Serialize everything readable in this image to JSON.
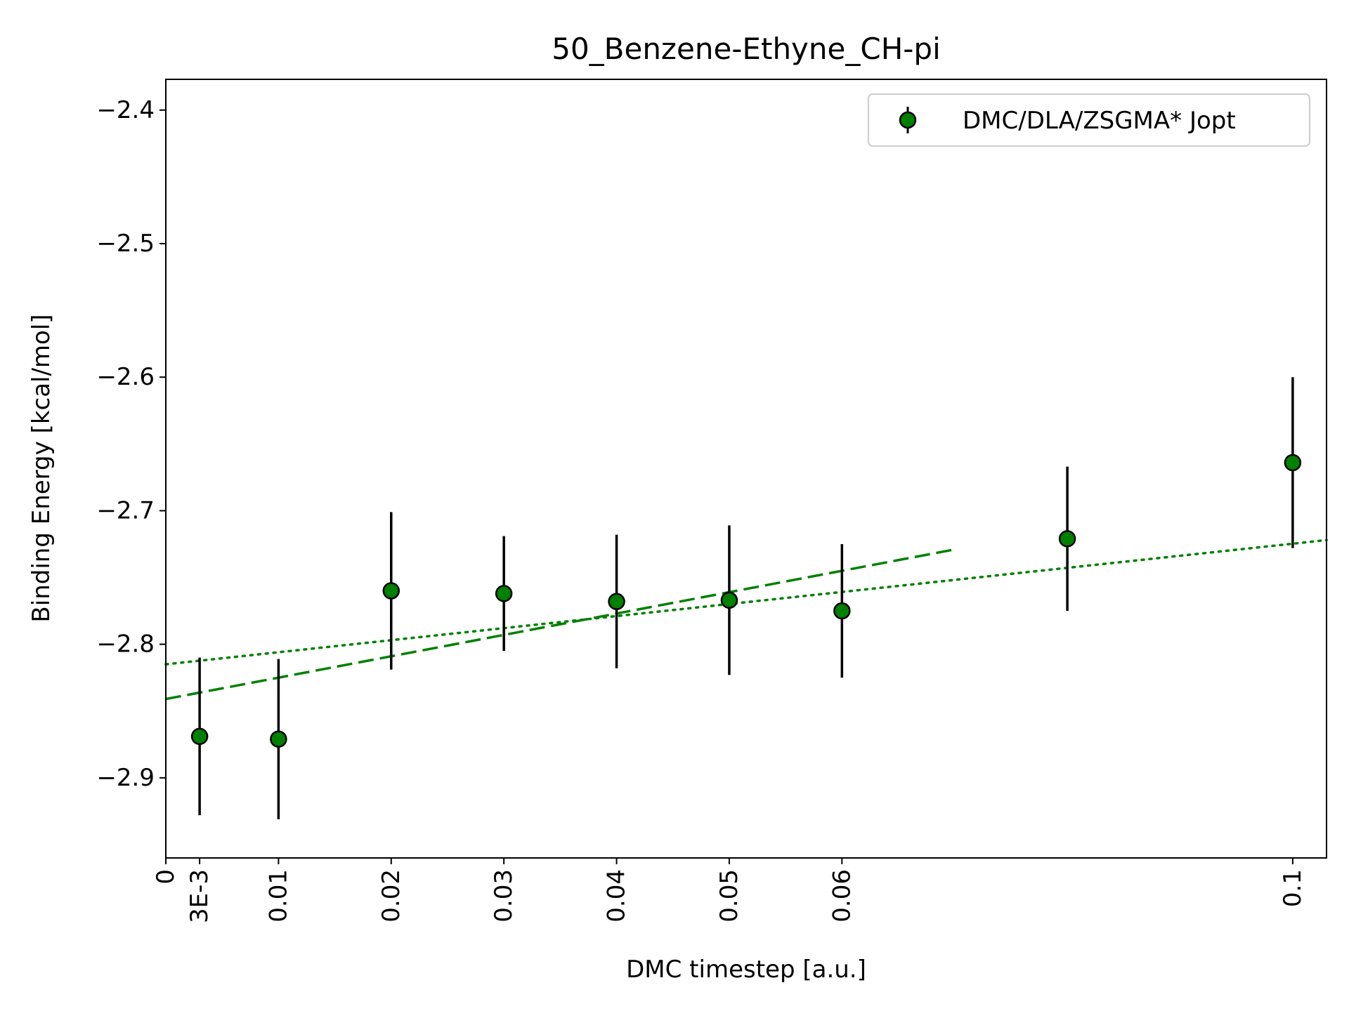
{
  "chart_data": {
    "type": "scatter",
    "title": "50_Benzene-Ethyne_CH-pi",
    "xlabel": "DMC timestep [a.u.]",
    "ylabel": "Binding Energy [kcal/mol]",
    "xlim": [
      0,
      0.103
    ],
    "ylim": [
      -2.96,
      -2.377
    ],
    "xticks": [
      {
        "value": 0,
        "label": "0"
      },
      {
        "value": 0.003,
        "label": "3E-3"
      },
      {
        "value": 0.01,
        "label": "0.01"
      },
      {
        "value": 0.02,
        "label": "0.02"
      },
      {
        "value": 0.03,
        "label": "0.03"
      },
      {
        "value": 0.04,
        "label": "0.04"
      },
      {
        "value": 0.05,
        "label": "0.05"
      },
      {
        "value": 0.06,
        "label": "0.06"
      },
      {
        "value": 0.1,
        "label": "0.1"
      }
    ],
    "yticks": [
      {
        "value": -2.4,
        "label": "−2.4"
      },
      {
        "value": -2.5,
        "label": "−2.5"
      },
      {
        "value": -2.6,
        "label": "−2.6"
      },
      {
        "value": -2.7,
        "label": "−2.7"
      },
      {
        "value": -2.8,
        "label": "−2.8"
      },
      {
        "value": -2.9,
        "label": "−2.9"
      }
    ],
    "grid": false,
    "legend_position": "top-right",
    "series": [
      {
        "name": "DMC/DLA/ZSGMA* Jopt",
        "color": "#008000",
        "edge_color": "#000000",
        "errorbar_color": "#000000",
        "x": [
          0.003,
          0.01,
          0.02,
          0.03,
          0.04,
          0.05,
          0.06,
          0.08,
          0.1
        ],
        "y": [
          -2.869,
          -2.871,
          -2.76,
          -2.762,
          -2.768,
          -2.767,
          -2.775,
          -2.721,
          -2.664
        ],
        "yerr": [
          0.059,
          0.06,
          0.059,
          0.043,
          0.05,
          0.056,
          0.05,
          0.054,
          0.064
        ]
      }
    ],
    "fit_lines": [
      {
        "style": "dashed",
        "color": "#008000",
        "x": [
          0,
          0.07
        ],
        "y": [
          -2.841,
          -2.729
        ]
      },
      {
        "style": "dotted",
        "color": "#008000",
        "x": [
          0,
          0.103
        ],
        "y": [
          -2.815,
          -2.722
        ]
      }
    ]
  }
}
